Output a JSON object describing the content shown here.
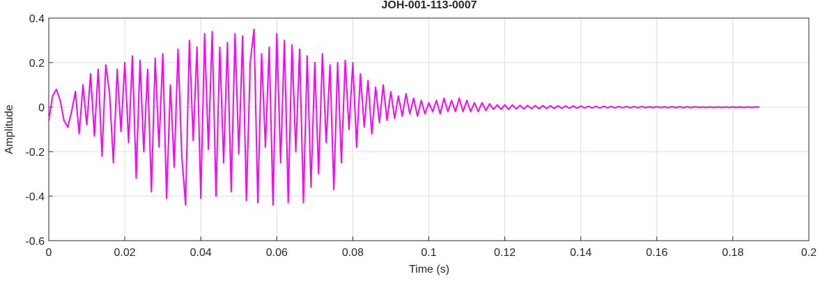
{
  "chart_data": {
    "type": "line",
    "title": "JOH-001-113-0007",
    "x_label": "Time (s)",
    "y_label": "Amplitude",
    "color": "#ff00ff",
    "grid": true,
    "xlim": [
      0,
      0.2
    ],
    "xticks": [
      0,
      0.02,
      0.04,
      0.06,
      0.08,
      0.1,
      0.12,
      0.14,
      0.16,
      0.18,
      0.2
    ],
    "ylim": [
      -0.6,
      0.4
    ],
    "yticks": [
      -0.6,
      -0.4,
      -0.2,
      0,
      0.2,
      0.4
    ],
    "x": [
      0,
      0.001,
      0.002,
      0.003,
      0.004,
      0.005,
      0.006,
      0.007,
      0.008,
      0.009,
      0.01,
      0.011,
      0.012,
      0.013,
      0.014,
      0.015,
      0.016,
      0.017,
      0.018,
      0.019,
      0.02,
      0.021,
      0.022,
      0.023,
      0.024,
      0.025,
      0.026,
      0.027,
      0.028,
      0.029,
      0.03,
      0.031,
      0.032,
      0.033,
      0.034,
      0.035,
      0.036,
      0.037,
      0.038,
      0.039,
      0.04,
      0.041,
      0.042,
      0.043,
      0.044,
      0.045,
      0.046,
      0.047,
      0.048,
      0.049,
      0.05,
      0.051,
      0.052,
      0.053,
      0.054,
      0.055,
      0.056,
      0.057,
      0.058,
      0.059,
      0.06,
      0.061,
      0.062,
      0.063,
      0.064,
      0.065,
      0.066,
      0.067,
      0.068,
      0.069,
      0.07,
      0.071,
      0.072,
      0.073,
      0.074,
      0.075,
      0.076,
      0.077,
      0.078,
      0.079,
      0.08,
      0.081,
      0.082,
      0.083,
      0.084,
      0.085,
      0.086,
      0.087,
      0.088,
      0.089,
      0.09,
      0.091,
      0.092,
      0.093,
      0.094,
      0.095,
      0.096,
      0.097,
      0.098,
      0.099,
      0.1,
      0.101,
      0.102,
      0.103,
      0.104,
      0.105,
      0.106,
      0.107,
      0.108,
      0.109,
      0.11,
      0.111,
      0.112,
      0.113,
      0.114,
      0.115,
      0.116,
      0.117,
      0.118,
      0.119,
      0.12,
      0.121,
      0.122,
      0.123,
      0.124,
      0.125,
      0.126,
      0.127,
      0.128,
      0.129,
      0.13,
      0.131,
      0.132,
      0.133,
      0.134,
      0.135,
      0.136,
      0.137,
      0.138,
      0.139,
      0.14,
      0.141,
      0.142,
      0.143,
      0.144,
      0.145,
      0.146,
      0.147,
      0.148,
      0.149,
      0.15,
      0.151,
      0.152,
      0.153,
      0.154,
      0.155,
      0.156,
      0.157,
      0.158,
      0.159,
      0.16,
      0.161,
      0.162,
      0.163,
      0.164,
      0.165,
      0.166,
      0.167,
      0.168,
      0.169,
      0.17,
      0.171,
      0.172,
      0.173,
      0.174,
      0.175,
      0.176,
      0.177,
      0.178,
      0.179,
      0.18,
      0.181,
      0.182,
      0.183,
      0.184,
      0.185,
      0.186,
      0.187
    ],
    "values": [
      -0.06,
      0.05,
      0.08,
      0.03,
      -0.06,
      -0.09,
      -0.02,
      0.07,
      -0.12,
      0.1,
      -0.08,
      0.15,
      -0.13,
      0.17,
      -0.22,
      0.19,
      0.06,
      -0.25,
      0.17,
      -0.11,
      0.2,
      -0.16,
      0.23,
      -0.32,
      0.21,
      -0.2,
      0.17,
      -0.38,
      0.22,
      -0.18,
      0.24,
      -0.41,
      0.1,
      -0.27,
      0.26,
      -0.22,
      -0.44,
      0.3,
      -0.15,
      0.27,
      -0.41,
      0.33,
      -0.19,
      0.34,
      -0.4,
      0.27,
      -0.25,
      0.29,
      -0.38,
      0.33,
      -0.21,
      0.32,
      -0.42,
      0.2,
      0.35,
      -0.43,
      0.24,
      -0.18,
      0.27,
      -0.44,
      0.33,
      -0.25,
      0.3,
      -0.43,
      0.28,
      -0.2,
      0.26,
      -0.43,
      0.23,
      -0.36,
      0.2,
      -0.3,
      0.24,
      -0.16,
      0.19,
      -0.37,
      0.2,
      -0.25,
      0.21,
      -0.1,
      0.2,
      -0.18,
      0.15,
      -0.09,
      0.12,
      -0.12,
      0.09,
      -0.07,
      0.1,
      -0.06,
      0.07,
      -0.05,
      0.05,
      -0.04,
      0.06,
      -0.03,
      0.04,
      -0.04,
      0.03,
      -0.03,
      0.02,
      -0.02,
      0.03,
      -0.03,
      0.04,
      -0.02,
      0.03,
      -0.02,
      0.04,
      -0.02,
      0.03,
      -0.02,
      0.02,
      -0.02,
      0.02,
      -0.015,
      0.015,
      -0.01,
      0.01,
      -0.01,
      0.01,
      -0.01,
      0.01,
      -0.008,
      0.008,
      -0.008,
      0.008,
      -0.007,
      0.007,
      -0.007,
      0.007,
      -0.006,
      0.006,
      -0.006,
      0.006,
      -0.005,
      0.005,
      -0.005,
      0.005,
      -0.005,
      0.005,
      -0.004,
      0.004,
      -0.004,
      0.004,
      -0.004,
      0.004,
      -0.003,
      0.003,
      -0.003,
      0.003,
      -0.003,
      0.003,
      -0.003,
      0.003,
      -0.003,
      0.003,
      -0.002,
      0.002,
      -0.002,
      0.002,
      -0.002,
      0.002,
      -0.002,
      0.002,
      -0.002,
      0.002,
      -0.002,
      0.002,
      -0.002,
      0.002,
      -0.001,
      0.001,
      -0.001,
      0.001,
      -0.001,
      0.001,
      -0.001,
      0.001,
      -0.001,
      0.001,
      -0.001,
      0.001,
      -0.001,
      0.001,
      -0.001,
      0.001,
      0
    ]
  }
}
